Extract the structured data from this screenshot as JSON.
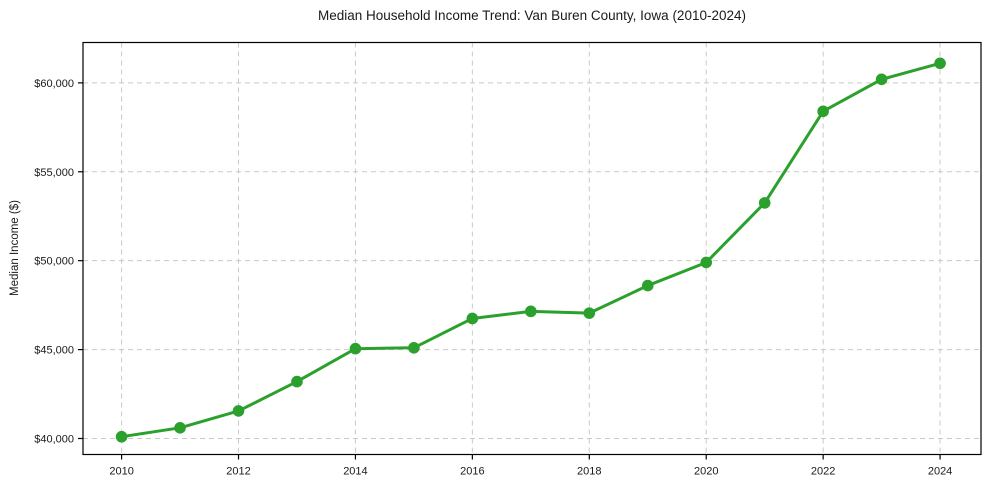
{
  "chart_data": {
    "type": "line",
    "title": "Median Household Income Trend: Van Buren County, Iowa (2010-2024)",
    "xlabel": "",
    "ylabel": "Median Income ($)",
    "x": [
      2010,
      2011,
      2012,
      2013,
      2014,
      2015,
      2016,
      2017,
      2018,
      2019,
      2020,
      2021,
      2022,
      2023,
      2024
    ],
    "values": [
      40100,
      40600,
      41550,
      43200,
      45050,
      45100,
      46750,
      47150,
      47050,
      48600,
      49900,
      53250,
      58400,
      60200,
      61100
    ],
    "xlim": [
      2009.34,
      2024.7
    ],
    "ylim": [
      39100,
      62270
    ],
    "xticks": [
      2010,
      2012,
      2014,
      2016,
      2018,
      2020,
      2022,
      2024
    ],
    "xtick_labels": [
      "2010",
      "2012",
      "2014",
      "2016",
      "2018",
      "2020",
      "2022",
      "2024"
    ],
    "yticks": [
      40000,
      45000,
      50000,
      55000,
      60000
    ],
    "ytick_labels": [
      "$40,000",
      "$45,000",
      "$50,000",
      "$55,000",
      "$60,000"
    ],
    "grid": true,
    "grid_style": "dashed",
    "legend": "none",
    "line_width": 3,
    "marker_style": "circle",
    "marker_radius": 5.8,
    "colors": {
      "line": "#2ca02c",
      "marker": "#2ca02c",
      "grid": "#c9c9c9",
      "axis": "#000000",
      "text": "#1a1a1a",
      "background": "#ffffff"
    }
  }
}
